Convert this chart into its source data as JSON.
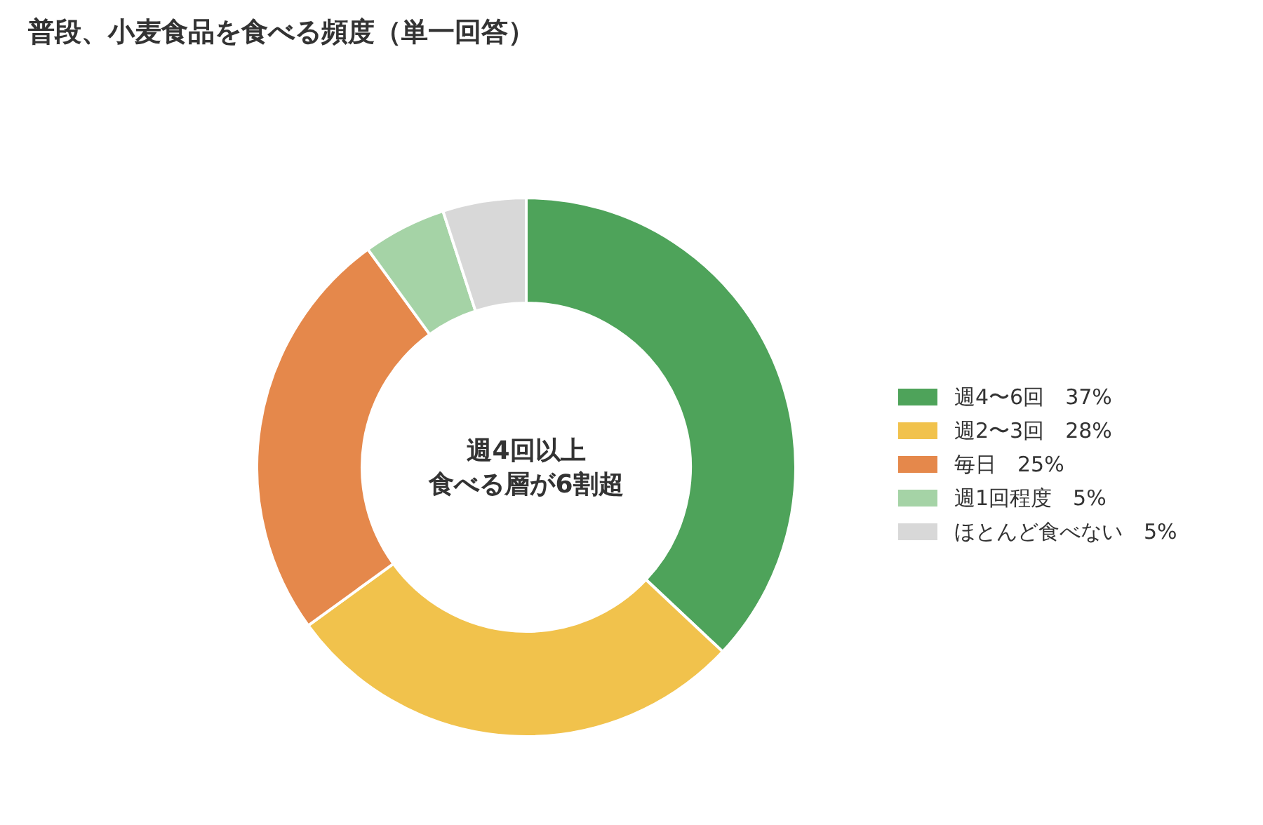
{
  "chart_data": {
    "type": "donut",
    "title": "普段、小麦食品を食べる頻度（単一回答）",
    "categories": [
      "週4〜6回",
      "週2〜3回",
      "毎日",
      "週1回程度",
      "ほとんど食べない"
    ],
    "values": [
      37,
      28,
      25,
      5,
      5
    ],
    "value_labels": [
      "37%",
      "28%",
      "25%",
      "5%",
      "5%"
    ],
    "colors": [
      "#4ea35a",
      "#f1c24c",
      "#e5884b",
      "#a5d3a6",
      "#d8d8d8"
    ],
    "legend": "right",
    "annotations": [
      "週4回以上",
      "食べる層が6割超"
    ]
  }
}
